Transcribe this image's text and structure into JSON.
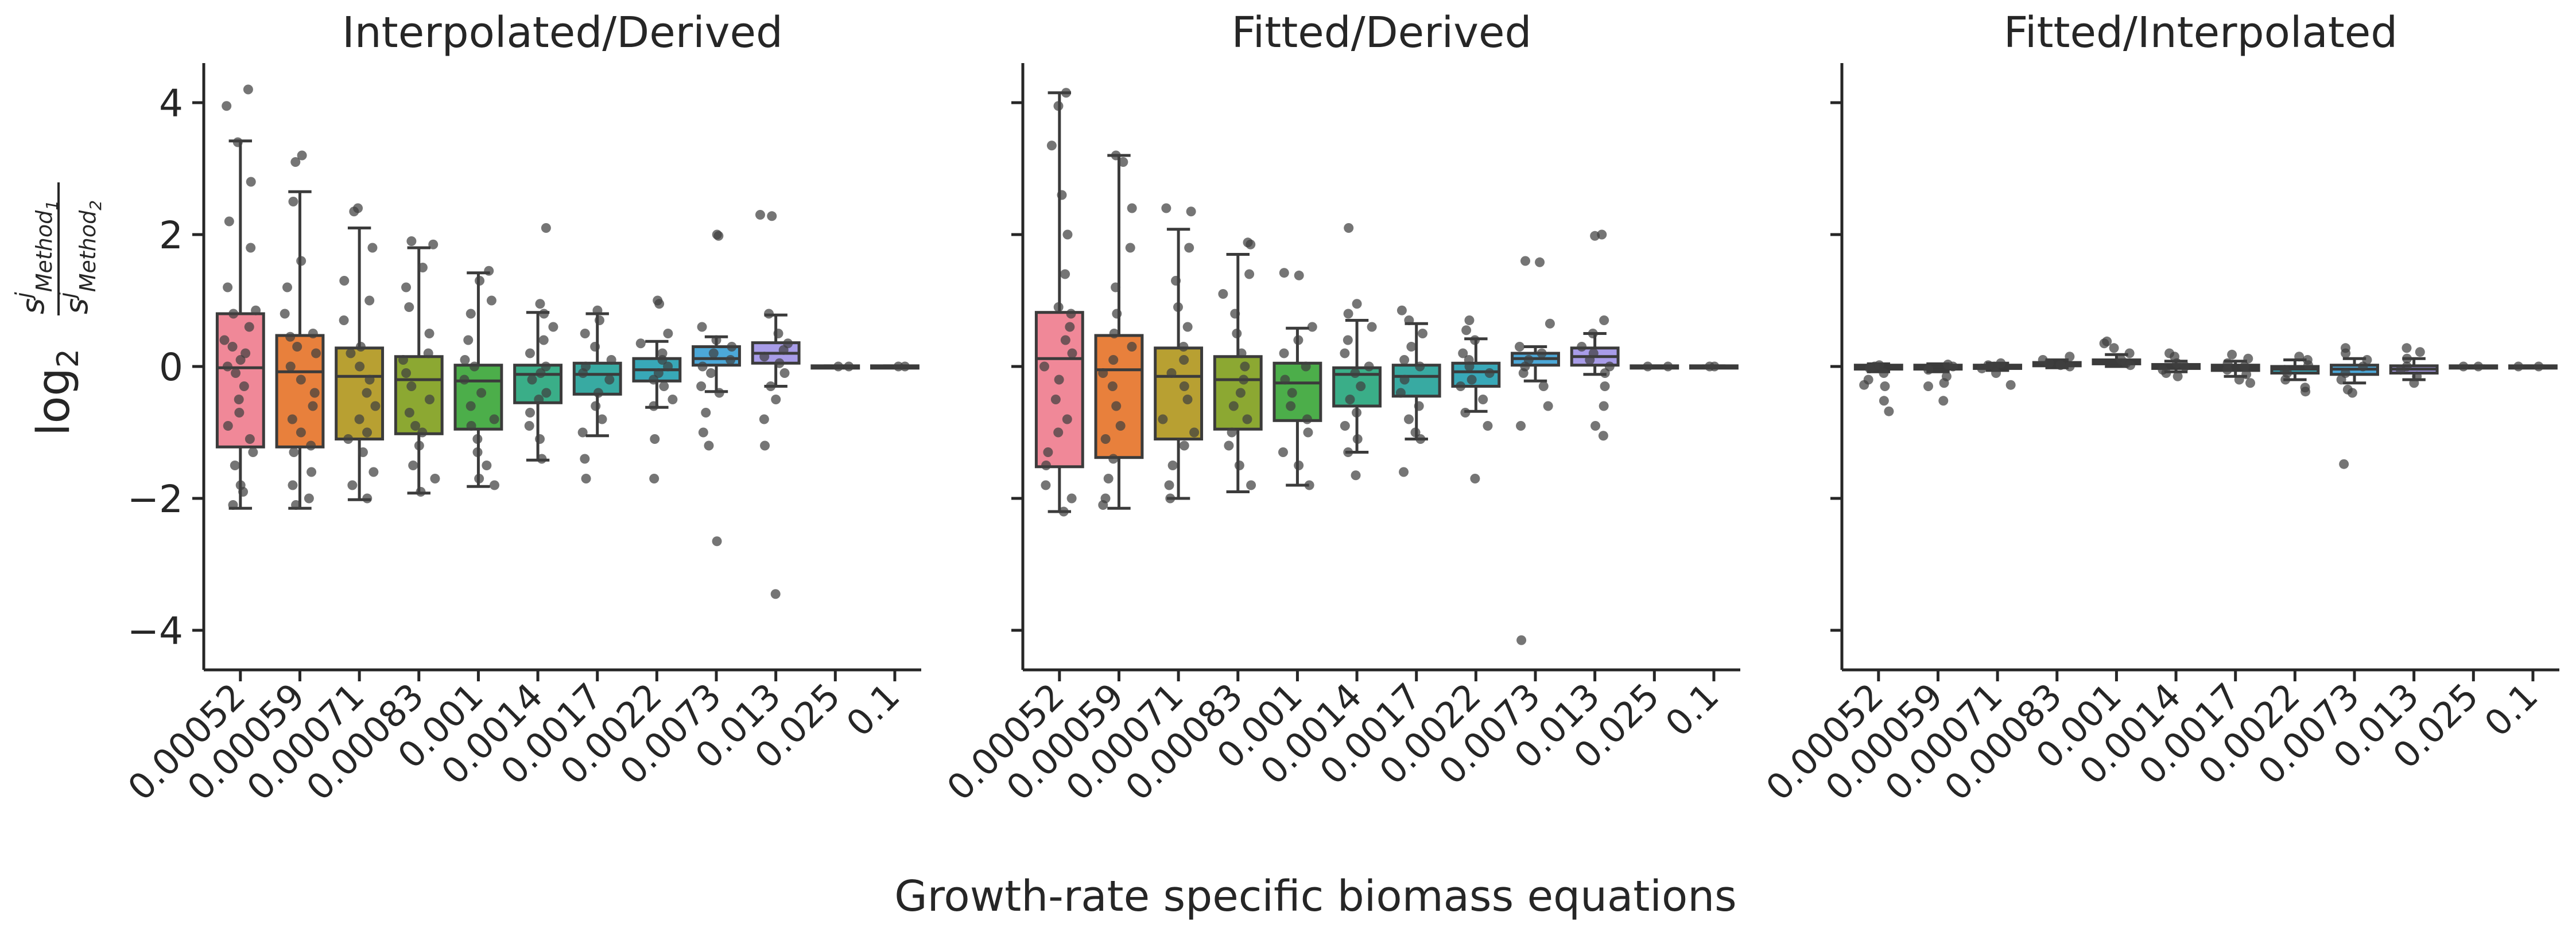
{
  "figure": {
    "xlabel": "Growth-rate specific biomass equations",
    "ylabel_prefix": "log",
    "ylabel_sub": "2",
    "ylabel_num": "s",
    "ylabel_num_sup": "j",
    "ylabel_num_sub": "Method",
    "ylabel_num_subsub": "1",
    "ylabel_den": "s",
    "ylabel_den_sup": "j",
    "ylabel_den_sub": "Method",
    "ylabel_den_subsub": "2",
    "yticks": [
      -4,
      -2,
      0,
      2,
      4
    ],
    "ylim": [
      -4.6,
      4.6
    ],
    "shared_y": true
  },
  "chart_data": [
    {
      "type": "box",
      "title": "Interpolated/Derived",
      "categories": [
        "0.00052",
        "0.00059",
        "0.00071",
        "0.00083",
        "0.001",
        "0.0014",
        "0.0017",
        "0.0022",
        "0.0073",
        "0.013",
        "0.025",
        "0.1"
      ],
      "colors": [
        "#f08898",
        "#e8803c",
        "#b8a032",
        "#8ca832",
        "#4cae4a",
        "#3aae88",
        "#38aaa2",
        "#38a8b8",
        "#4ca8d8",
        "#a89ce8",
        "#f090e0",
        "#f090b8"
      ],
      "boxes": [
        {
          "whislo": -2.15,
          "q1": -1.22,
          "med": -0.02,
          "q3": 0.8,
          "whishi": 3.42,
          "points": [
            4.2,
            3.95,
            3.4,
            2.8,
            2.2,
            1.8,
            1.2,
            0.85,
            0.8,
            0.6,
            0.4,
            0.3,
            0.2,
            0.1,
            0.0,
            -0.1,
            -0.3,
            -0.5,
            -0.7,
            -0.9,
            -1.1,
            -1.3,
            -1.5,
            -1.8,
            -1.9,
            -2.1
          ]
        },
        {
          "whislo": -2.15,
          "q1": -1.22,
          "med": -0.08,
          "q3": 0.47,
          "whishi": 2.65,
          "points": [
            3.2,
            3.1,
            2.5,
            1.6,
            1.2,
            0.8,
            0.5,
            0.45,
            0.3,
            0.2,
            0.0,
            -0.2,
            -0.4,
            -0.6,
            -0.8,
            -1.0,
            -1.2,
            -1.3,
            -1.6,
            -1.8,
            -2.0,
            -2.1
          ]
        },
        {
          "whislo": -2.02,
          "q1": -1.1,
          "med": -0.15,
          "q3": 0.28,
          "whishi": 2.1,
          "points": [
            2.4,
            2.35,
            1.8,
            1.3,
            1.0,
            0.7,
            0.3,
            0.2,
            0.0,
            -0.2,
            -0.4,
            -0.6,
            -0.8,
            -1.0,
            -1.1,
            -1.3,
            -1.6,
            -1.8,
            -2.0
          ]
        },
        {
          "whislo": -1.92,
          "q1": -1.02,
          "med": -0.2,
          "q3": 0.15,
          "whishi": 1.8,
          "points": [
            1.9,
            1.85,
            1.5,
            1.2,
            0.9,
            0.5,
            0.2,
            0.1,
            -0.1,
            -0.3,
            -0.5,
            -0.7,
            -0.9,
            -1.0,
            -1.2,
            -1.5,
            -1.7,
            -1.9
          ]
        },
        {
          "whislo": -1.82,
          "q1": -0.95,
          "med": -0.22,
          "q3": 0.02,
          "whishi": 1.42,
          "points": [
            1.45,
            1.3,
            1.0,
            0.8,
            0.4,
            0.1,
            0.0,
            -0.2,
            -0.4,
            -0.6,
            -0.8,
            -0.9,
            -1.1,
            -1.3,
            -1.5,
            -1.7,
            -1.8
          ]
        },
        {
          "whislo": -1.42,
          "q1": -0.55,
          "med": -0.12,
          "q3": 0.02,
          "whishi": 0.82,
          "points": [
            2.1,
            0.95,
            0.8,
            0.6,
            0.4,
            0.2,
            0.0,
            -0.1,
            -0.2,
            -0.4,
            -0.5,
            -0.7,
            -0.9,
            -1.1,
            -1.4
          ]
        },
        {
          "whislo": -1.05,
          "q1": -0.42,
          "med": -0.12,
          "q3": 0.05,
          "whishi": 0.8,
          "points": [
            0.85,
            0.7,
            0.5,
            0.3,
            0.1,
            0.0,
            -0.1,
            -0.2,
            -0.4,
            -0.6,
            -0.8,
            -1.0,
            -1.4,
            -1.7
          ]
        },
        {
          "whislo": -0.62,
          "q1": -0.22,
          "med": -0.05,
          "q3": 0.12,
          "whishi": 0.38,
          "points": [
            1.0,
            0.95,
            0.5,
            0.35,
            0.2,
            0.1,
            0.0,
            -0.1,
            -0.2,
            -0.3,
            -0.5,
            -0.6,
            -1.1,
            -1.7
          ]
        },
        {
          "whislo": -0.38,
          "q1": 0.02,
          "med": 0.12,
          "q3": 0.3,
          "whishi": 0.45,
          "points": [
            2.0,
            1.98,
            0.6,
            0.4,
            0.3,
            0.2,
            0.1,
            0.0,
            -0.1,
            -0.3,
            -0.4,
            -0.7,
            -1.0,
            -1.2,
            -2.65
          ]
        },
        {
          "whislo": -0.3,
          "q1": 0.05,
          "med": 0.2,
          "q3": 0.36,
          "whishi": 0.78,
          "points": [
            2.3,
            2.28,
            0.8,
            0.5,
            0.35,
            0.25,
            0.15,
            0.05,
            -0.1,
            -0.3,
            -0.5,
            -0.8,
            -1.2,
            -3.45
          ]
        },
        {
          "whislo": -0.01,
          "q1": -0.01,
          "med": 0.0,
          "q3": 0.01,
          "whishi": 0.01,
          "points": [
            0.0,
            0.0
          ]
        },
        {
          "whislo": -0.01,
          "q1": -0.01,
          "med": 0.0,
          "q3": 0.01,
          "whishi": 0.01,
          "points": [
            0.0,
            0.0
          ]
        }
      ]
    },
    {
      "type": "box",
      "title": "Fitted/Derived",
      "categories": [
        "0.00052",
        "0.00059",
        "0.00071",
        "0.00083",
        "0.001",
        "0.0014",
        "0.0017",
        "0.0022",
        "0.0073",
        "0.013",
        "0.025",
        "0.1"
      ],
      "colors": [
        "#f08898",
        "#e8803c",
        "#b8a032",
        "#8ca832",
        "#4cae4a",
        "#3aae88",
        "#38aaa2",
        "#38a8b8",
        "#4ca8d8",
        "#a89ce8",
        "#f090e0",
        "#f090b8"
      ],
      "boxes": [
        {
          "whislo": -2.2,
          "q1": -1.52,
          "med": 0.12,
          "q3": 0.82,
          "whishi": 4.15,
          "points": [
            4.15,
            3.95,
            3.35,
            2.6,
            2.0,
            1.4,
            0.9,
            0.8,
            0.6,
            0.4,
            0.2,
            0.0,
            -0.2,
            -0.5,
            -0.8,
            -1.0,
            -1.3,
            -1.5,
            -1.8,
            -2.0,
            -2.2
          ]
        },
        {
          "whislo": -2.15,
          "q1": -1.38,
          "med": -0.05,
          "q3": 0.47,
          "whishi": 3.2,
          "points": [
            3.2,
            3.1,
            2.4,
            1.8,
            1.2,
            0.8,
            0.5,
            0.3,
            0.1,
            -0.1,
            -0.3,
            -0.6,
            -0.9,
            -1.1,
            -1.4,
            -1.7,
            -2.0,
            -2.1
          ]
        },
        {
          "whislo": -2.0,
          "q1": -1.1,
          "med": -0.15,
          "q3": 0.28,
          "whishi": 2.08,
          "points": [
            2.4,
            2.35,
            1.8,
            1.3,
            0.9,
            0.6,
            0.3,
            0.1,
            -0.1,
            -0.3,
            -0.5,
            -0.8,
            -1.0,
            -1.2,
            -1.5,
            -1.8,
            -2.0
          ]
        },
        {
          "whislo": -1.9,
          "q1": -0.95,
          "med": -0.2,
          "q3": 0.15,
          "whishi": 1.7,
          "points": [
            1.88,
            1.85,
            1.4,
            1.1,
            0.8,
            0.5,
            0.2,
            0.0,
            -0.2,
            -0.4,
            -0.6,
            -0.8,
            -1.0,
            -1.2,
            -1.5,
            -1.8
          ]
        },
        {
          "whislo": -1.8,
          "q1": -0.82,
          "med": -0.25,
          "q3": 0.05,
          "whishi": 0.58,
          "points": [
            1.42,
            1.38,
            0.6,
            0.4,
            0.2,
            0.0,
            -0.2,
            -0.4,
            -0.6,
            -0.8,
            -1.0,
            -1.3,
            -1.5,
            -1.8
          ]
        },
        {
          "whislo": -1.3,
          "q1": -0.6,
          "med": -0.12,
          "q3": -0.02,
          "whishi": 0.7,
          "points": [
            2.1,
            0.95,
            0.8,
            0.6,
            0.4,
            0.2,
            0.0,
            -0.1,
            -0.3,
            -0.5,
            -0.7,
            -0.9,
            -1.1,
            -1.3,
            -1.65
          ]
        },
        {
          "whislo": -1.1,
          "q1": -0.45,
          "med": -0.15,
          "q3": 0.02,
          "whishi": 0.65,
          "points": [
            0.85,
            0.7,
            0.5,
            0.3,
            0.1,
            0.0,
            -0.2,
            -0.4,
            -0.6,
            -0.8,
            -1.0,
            -1.1,
            -1.6
          ]
        },
        {
          "whislo": -0.68,
          "q1": -0.3,
          "med": -0.08,
          "q3": 0.05,
          "whishi": 0.42,
          "points": [
            0.7,
            0.55,
            0.4,
            0.2,
            0.1,
            0.0,
            -0.1,
            -0.2,
            -0.3,
            -0.5,
            -0.7,
            -0.9,
            -1.7
          ]
        },
        {
          "whislo": -0.22,
          "q1": 0.02,
          "med": 0.12,
          "q3": 0.2,
          "whishi": 0.3,
          "points": [
            1.6,
            1.58,
            0.65,
            0.3,
            0.2,
            0.1,
            0.0,
            -0.1,
            -0.3,
            -0.6,
            -0.9,
            -4.15
          ]
        },
        {
          "whislo": -0.12,
          "q1": 0.02,
          "med": 0.15,
          "q3": 0.28,
          "whishi": 0.5,
          "points": [
            2.0,
            1.98,
            0.7,
            0.5,
            0.3,
            0.2,
            0.1,
            0.0,
            -0.1,
            -0.3,
            -0.6,
            -0.9,
            -1.05
          ]
        },
        {
          "whislo": -0.01,
          "q1": -0.01,
          "med": 0.0,
          "q3": 0.01,
          "whishi": 0.01,
          "points": [
            0.0,
            0.0
          ]
        },
        {
          "whislo": -0.01,
          "q1": -0.01,
          "med": 0.0,
          "q3": 0.01,
          "whishi": 0.01,
          "points": [
            0.0,
            0.0
          ]
        }
      ]
    },
    {
      "type": "box",
      "title": "Fitted/Interpolated",
      "categories": [
        "0.00052",
        "0.00059",
        "0.00071",
        "0.00083",
        "0.001",
        "0.0014",
        "0.0017",
        "0.0022",
        "0.0073",
        "0.013",
        "0.025",
        "0.1"
      ],
      "colors": [
        "#f08898",
        "#e8803c",
        "#b8a032",
        "#8ca832",
        "#4cae4a",
        "#3aae88",
        "#38aaa2",
        "#38a8b8",
        "#4ca8d8",
        "#a89ce8",
        "#f090e0",
        "#f090b8"
      ],
      "boxes": [
        {
          "whislo": -0.08,
          "q1": -0.04,
          "med": -0.01,
          "q3": 0.02,
          "whishi": 0.04,
          "points": [
            0.02,
            0.0,
            -0.03,
            -0.1,
            -0.2,
            -0.28,
            -0.3,
            -0.52,
            -0.68
          ]
        },
        {
          "whislo": -0.08,
          "q1": -0.04,
          "med": -0.01,
          "q3": 0.02,
          "whishi": 0.04,
          "points": [
            0.03,
            0.0,
            -0.05,
            -0.15,
            -0.25,
            -0.3,
            -0.52
          ]
        },
        {
          "whislo": -0.06,
          "q1": -0.03,
          "med": 0.0,
          "q3": 0.02,
          "whishi": 0.05,
          "points": [
            0.05,
            0.02,
            0.0,
            -0.03,
            -0.1,
            -0.28
          ]
        },
        {
          "whislo": -0.02,
          "q1": 0.01,
          "med": 0.03,
          "q3": 0.06,
          "whishi": 0.1,
          "points": [
            0.15,
            0.1,
            0.05,
            0.02,
            0.0
          ]
        },
        {
          "whislo": 0.0,
          "q1": 0.04,
          "med": 0.06,
          "q3": 0.1,
          "whishi": 0.18,
          "points": [
            0.38,
            0.35,
            0.28,
            0.2,
            0.1,
            0.05,
            0.02
          ]
        },
        {
          "whislo": -0.08,
          "q1": -0.03,
          "med": 0.0,
          "q3": 0.03,
          "whishi": 0.08,
          "points": [
            0.2,
            0.15,
            0.05,
            0.0,
            -0.05,
            -0.1,
            -0.15
          ]
        },
        {
          "whislo": -0.15,
          "q1": -0.06,
          "med": -0.02,
          "q3": 0.02,
          "whishi": 0.08,
          "points": [
            0.18,
            0.12,
            0.05,
            0.0,
            -0.05,
            -0.12,
            -0.2,
            -0.25
          ]
        },
        {
          "whislo": -0.2,
          "q1": -0.1,
          "med": -0.04,
          "q3": 0.0,
          "whishi": 0.1,
          "points": [
            0.15,
            0.1,
            0.02,
            -0.05,
            -0.1,
            -0.2,
            -0.32,
            -0.38
          ]
        },
        {
          "whislo": -0.25,
          "q1": -0.12,
          "med": -0.04,
          "q3": 0.02,
          "whishi": 0.12,
          "points": [
            0.28,
            0.2,
            0.1,
            0.0,
            -0.1,
            -0.2,
            -0.35,
            -0.4,
            -1.48
          ]
        },
        {
          "whislo": -0.2,
          "q1": -0.1,
          "med": -0.04,
          "q3": 0.01,
          "whishi": 0.12,
          "points": [
            0.28,
            0.22,
            0.12,
            0.0,
            -0.05,
            -0.15,
            -0.25
          ]
        },
        {
          "whislo": -0.01,
          "q1": -0.01,
          "med": 0.0,
          "q3": 0.01,
          "whishi": 0.01,
          "points": [
            0.0,
            0.0
          ]
        },
        {
          "whislo": -0.01,
          "q1": -0.01,
          "med": 0.0,
          "q3": 0.01,
          "whishi": 0.01,
          "points": [
            0.0,
            0.0
          ]
        }
      ]
    }
  ]
}
